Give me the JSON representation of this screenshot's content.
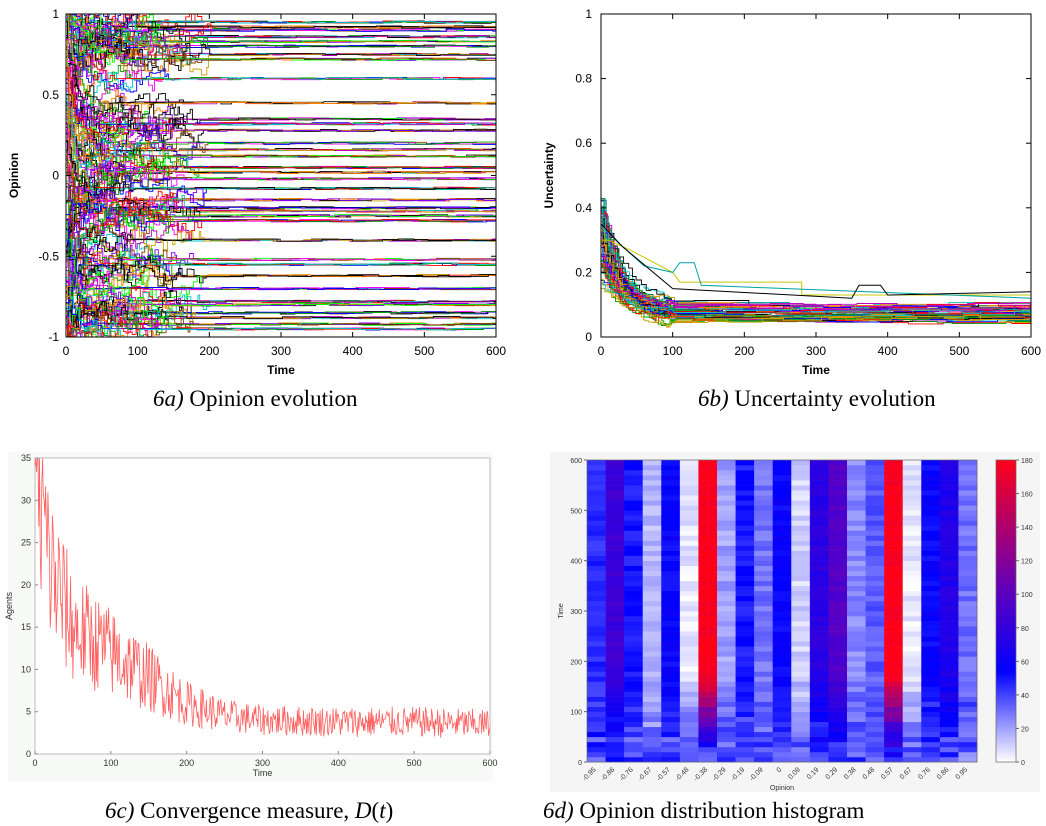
{
  "captions": {
    "a": {
      "id": "6a)",
      "text": " Opinion evolution"
    },
    "b": {
      "id": "6b)",
      "text": " Uncertainty evolution"
    },
    "c": {
      "id": "6c)",
      "text": " Convergence measure, ",
      "math_d": "D",
      "math_open": "(",
      "math_t": "t",
      "math_close": ")"
    },
    "d": {
      "id": "6d)",
      "text": " Opinion distribution histogram"
    }
  },
  "chart_data": [
    {
      "id": "opinion",
      "type": "line",
      "xlabel": "Time",
      "ylabel": "Opinion",
      "xlim": [
        0,
        600
      ],
      "ylim": [
        -1,
        1
      ],
      "xticks": [
        "0",
        "100",
        "200",
        "300",
        "400",
        "500",
        "600"
      ],
      "yticks": [
        "-1",
        "-0.5",
        "0",
        "0.5",
        "1"
      ],
      "cluster_opinions": [
        0.95,
        0.92,
        0.9,
        0.86,
        0.83,
        0.8,
        0.75,
        0.72,
        0.6,
        0.45,
        0.35,
        0.32,
        0.28,
        0.2,
        0.16,
        0.12,
        0.05,
        0.02,
        -0.02,
        -0.08,
        -0.15,
        -0.2,
        -0.22,
        -0.25,
        -0.28,
        -0.4,
        -0.52,
        -0.55,
        -0.62,
        -0.7,
        -0.78,
        -0.8,
        -0.85,
        -0.88,
        -0.92,
        -0.95
      ],
      "series_colors": [
        "#0000ff",
        "#00a000",
        "#ff0000",
        "#00c8c8",
        "#c000c0",
        "#c8a000",
        "#000000",
        "#ff8000",
        "#8000ff",
        "#00ff00",
        "#804000",
        "#ff00ff"
      ]
    },
    {
      "id": "uncertainty",
      "type": "line",
      "xlabel": "Time",
      "ylabel": "Uncertainty",
      "xlim": [
        0,
        600
      ],
      "ylim": [
        0,
        1
      ],
      "xticks": [
        "0",
        "100",
        "200",
        "300",
        "400",
        "500",
        "600"
      ],
      "yticks": [
        "0",
        "0.2",
        "0.4",
        "0.6",
        "0.8",
        "1"
      ],
      "initial_peak": 0.43,
      "final_level": 0.07,
      "notable_series": [
        {
          "points": [
            [
              0,
              0.3
            ],
            [
              10,
              0.3
            ],
            [
              40,
              0.27
            ],
            [
              100,
              0.2
            ],
            [
              110,
              0.17
            ],
            [
              280,
              0.17
            ],
            [
              280,
              0.13
            ],
            [
              600,
              0.13
            ]
          ]
        },
        {
          "points": [
            [
              0,
              0.4
            ],
            [
              20,
              0.3
            ],
            [
              60,
              0.22
            ],
            [
              100,
              0.2
            ],
            [
              110,
              0.23
            ],
            [
              130,
              0.23
            ],
            [
              140,
              0.16
            ],
            [
              600,
              0.12
            ]
          ]
        },
        {
          "points": [
            [
              0,
              0.35
            ],
            [
              30,
              0.28
            ],
            [
              100,
              0.15
            ],
            [
              350,
              0.12
            ],
            [
              360,
              0.16
            ],
            [
              390,
              0.16
            ],
            [
              400,
              0.13
            ],
            [
              600,
              0.14
            ]
          ]
        }
      ]
    },
    {
      "id": "convergence",
      "type": "line",
      "xlabel": "Time",
      "ylabel": "Agents",
      "xlim": [
        0,
        600
      ],
      "ylim": [
        0,
        35
      ],
      "xticks": [
        "0",
        "100",
        "200",
        "300",
        "400",
        "500",
        "600"
      ],
      "yticks": [
        "0",
        "5",
        "10",
        "15",
        "20",
        "25",
        "30",
        "35"
      ],
      "color": "#ff6060",
      "trend": [
        [
          0,
          33
        ],
        [
          10,
          28
        ],
        [
          20,
          22
        ],
        [
          50,
          15
        ],
        [
          100,
          12
        ],
        [
          150,
          9
        ],
        [
          200,
          6
        ],
        [
          250,
          4.5
        ],
        [
          300,
          4
        ],
        [
          400,
          3.8
        ],
        [
          500,
          3.8
        ],
        [
          600,
          3.5
        ]
      ]
    },
    {
      "id": "histogram",
      "type": "heatmap",
      "xlabel": "Opinion",
      "ylabel": "Time",
      "ylim": [
        0,
        600
      ],
      "yticks": [
        "0",
        "100",
        "200",
        "300",
        "400",
        "500",
        "600"
      ],
      "categories": [
        "-0.95",
        "-0.86",
        "-0.76",
        "-0.67",
        "-0.57",
        "-0.48",
        "-0.38",
        "-0.29",
        "-0.19",
        "-0.09",
        "0",
        "0.09",
        "0.19",
        "0.29",
        "0.38",
        "0.48",
        "0.57",
        "0.67",
        "0.76",
        "0.86",
        "0.95"
      ],
      "colorbar_ticks": [
        "0",
        "20",
        "40",
        "60",
        "80",
        "100",
        "120",
        "140",
        "160",
        "180"
      ],
      "colorbar_range": [
        0,
        180
      ],
      "final_counts": [
        45,
        85,
        50,
        15,
        55,
        5,
        180,
        20,
        50,
        30,
        55,
        10,
        75,
        95,
        25,
        35,
        180,
        5,
        55,
        70,
        30
      ]
    }
  ]
}
